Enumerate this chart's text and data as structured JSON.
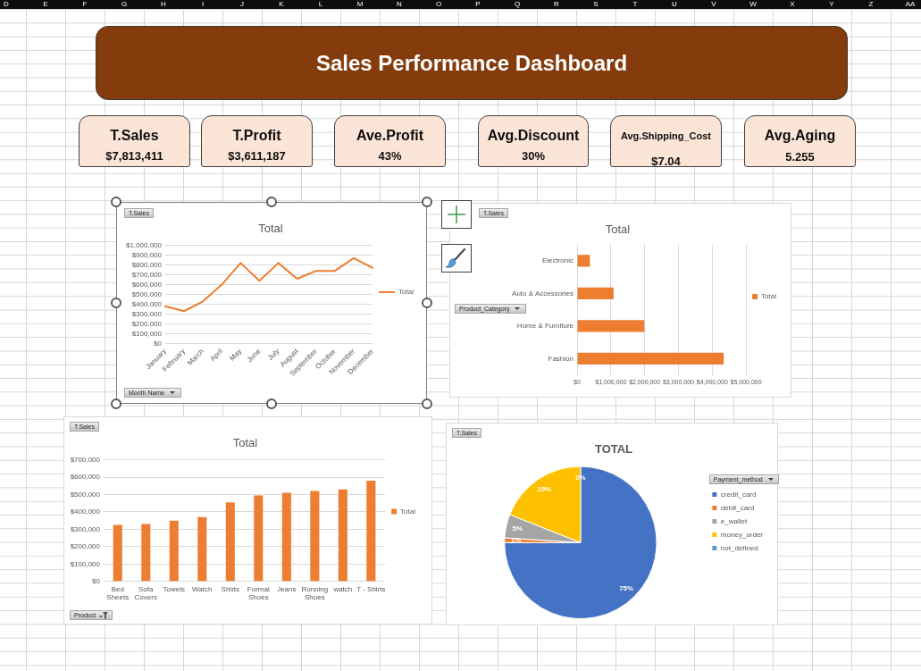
{
  "chart_data": [
    {
      "type": "other",
      "annotations": [
        "D",
        "E",
        "F",
        "G",
        "H",
        "I",
        "J",
        "K",
        "L",
        "M",
        "N",
        "O",
        "P",
        "Q",
        "R",
        "S",
        "T",
        "U",
        "V",
        "W",
        "X",
        "Y",
        "Z",
        "AA"
      ]
    },
    {
      "type": "other",
      "title": "Sales Performance Dashboard",
      "annotations": [
        "T.Sales",
        "$7,813,411",
        "T.Profit",
        "$3,611,187",
        "Ave.Profit",
        "43%",
        "Avg.Discount",
        "30%",
        "Avg.Shipping_Cost",
        "$7.04",
        "Avg.Aging",
        "5.255"
      ]
    },
    {
      "type": "line",
      "title": "Total",
      "categories": [
        "January",
        "February",
        "March",
        "April",
        "May",
        "June",
        "July",
        "August",
        "September",
        "October",
        "November",
        "December"
      ],
      "series": [
        {
          "name": "Total",
          "color": "#ed7d31",
          "values": [
            380000,
            330000,
            430000,
            600000,
            820000,
            640000,
            820000,
            660000,
            740000,
            740000,
            870000,
            770000
          ]
        }
      ],
      "ylim": [
        0,
        1000000
      ],
      "yticks": [
        {
          "value": 0,
          "label": "$0"
        },
        {
          "value": 100000,
          "label": "$100,000"
        },
        {
          "value": 200000,
          "label": "$200,000"
        },
        {
          "value": 300000,
          "label": "$300,000"
        },
        {
          "value": 400000,
          "label": "$400,000"
        },
        {
          "value": 500000,
          "label": "$500,000"
        },
        {
          "value": 600000,
          "label": "$600,000"
        },
        {
          "value": 700000,
          "label": "$700,000"
        },
        {
          "value": 800000,
          "label": "$800,000"
        },
        {
          "value": 900000,
          "label": "$900,000"
        },
        {
          "value": 1000000,
          "label": "$1,000,000"
        }
      ],
      "grid": "y",
      "legend": "right",
      "annotations": [
        "T.Sales",
        "Month Name"
      ]
    },
    {
      "type": "bar",
      "orientation": "horizontal",
      "title": "Total",
      "categories": [
        "Electronic",
        "Auto & Accessories",
        "Home & Furniture",
        "Fashion"
      ],
      "series": [
        {
          "name": "Total",
          "color": "#ed7d31",
          "values": [
            380000,
            1080000,
            1990000,
            4340000
          ]
        }
      ],
      "xlim": [
        0,
        5000000
      ],
      "xticks": [
        {
          "value": 0,
          "label": "$0"
        },
        {
          "value": 1000000,
          "label": "$1,000,000"
        },
        {
          "value": 2000000,
          "label": "$2,000,000"
        },
        {
          "value": 3000000,
          "label": "$3,000,000"
        },
        {
          "value": 4000000,
          "label": "$4,000,000"
        },
        {
          "value": 5000000,
          "label": "$5,000,000"
        }
      ],
      "grid": "x",
      "legend": "right",
      "annotations": [
        "T.Sales",
        "Product_Category"
      ]
    },
    {
      "type": "bar",
      "title": "Total",
      "categories": [
        "Bed Sheets",
        "Sofa Covers",
        "Towels",
        "Watch",
        "Shirts",
        "Formal Shoes",
        "Jeans",
        "Running Shoes",
        "watch",
        "T - Shirts"
      ],
      "series": [
        {
          "name": "Total",
          "color": "#ed7d31",
          "values": [
            325000,
            330000,
            350000,
            370000,
            455000,
            495000,
            510000,
            520000,
            530000,
            580000
          ]
        }
      ],
      "ylim": [
        0,
        700000
      ],
      "yticks": [
        {
          "value": 0,
          "label": "$0"
        },
        {
          "value": 100000,
          "label": "$100,000"
        },
        {
          "value": 200000,
          "label": "$200,000"
        },
        {
          "value": 300000,
          "label": "$300,000"
        },
        {
          "value": 400000,
          "label": "$400,000"
        },
        {
          "value": 500000,
          "label": "$500,000"
        },
        {
          "value": 600000,
          "label": "$600,000"
        },
        {
          "value": 700000,
          "label": "$700,000"
        }
      ],
      "grid": "y",
      "legend": "right",
      "annotations": [
        "T.Sales",
        "Product"
      ]
    },
    {
      "type": "pie",
      "title": "TOTAL",
      "categories": [
        "credit_card",
        "debit_card",
        "e_wallet",
        "money_order",
        "not_defined"
      ],
      "values": [
        75,
        1,
        5,
        19,
        0
      ],
      "colors": [
        "#4472c4",
        "#ed7d31",
        "#a5a5a5",
        "#ffc000",
        "#5b9bd5"
      ],
      "value_labels": [
        "75%",
        "1%",
        "5%",
        "19%",
        "0%"
      ],
      "legend": "right",
      "legend_title": "Payment_method",
      "annotations": [
        "T.Sales"
      ]
    }
  ]
}
